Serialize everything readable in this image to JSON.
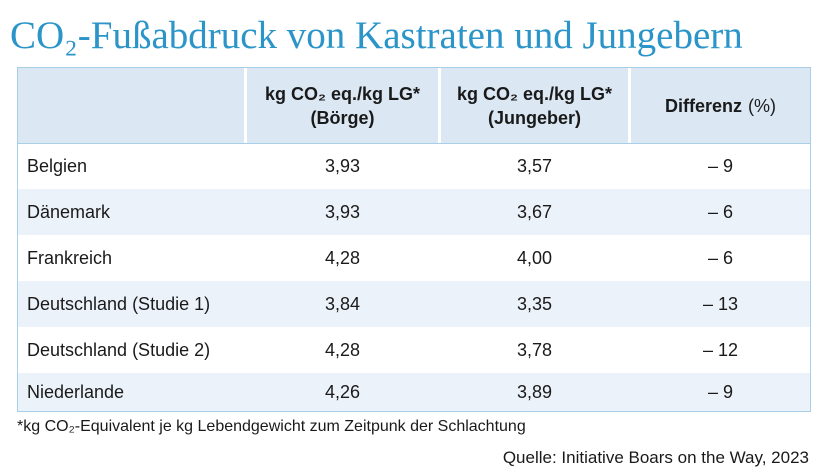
{
  "title": "CO₂-Fußabdruck von Kastraten und Jungebern",
  "table": {
    "headers": [
      {
        "line1": "",
        "line2": ""
      },
      {
        "line1": "kg CO₂ eq./kg LG*",
        "line2": "(Börge)"
      },
      {
        "line1": "kg CO₂ eq./kg LG*",
        "line2": "(Jungeber)"
      },
      {
        "line1": "Differenz",
        "line2": "(%)"
      }
    ],
    "rows": [
      {
        "country": "Belgien",
        "boerge": "3,93",
        "jungeber": "3,57",
        "diff": "– 9"
      },
      {
        "country": "Dänemark",
        "boerge": "3,93",
        "jungeber": "3,67",
        "diff": "– 6"
      },
      {
        "country": "Frankreich",
        "boerge": "4,28",
        "jungeber": "4,00",
        "diff": "– 6"
      },
      {
        "country": "Deutschland (Studie 1)",
        "boerge": "3,84",
        "jungeber": "3,35",
        "diff": "– 13"
      },
      {
        "country": "Deutschland (Studie 2)",
        "boerge": "4,28",
        "jungeber": "3,78",
        "diff": "– 12"
      },
      {
        "country": "Niederlande",
        "boerge": "4,26",
        "jungeber": "3,89",
        "diff": "– 9"
      }
    ]
  },
  "footnote": "*kg CO₂-Equivalent je kg Lebendgewicht zum Zeitpunk der Schlachtung",
  "source": "Quelle: Initiative Boars on the Way, 2023",
  "colors": {
    "title": "#2b94c8",
    "header_bg": "#dbe8f4",
    "alt_row_bg": "#ecf2fa",
    "border": "#a9cfe6"
  }
}
